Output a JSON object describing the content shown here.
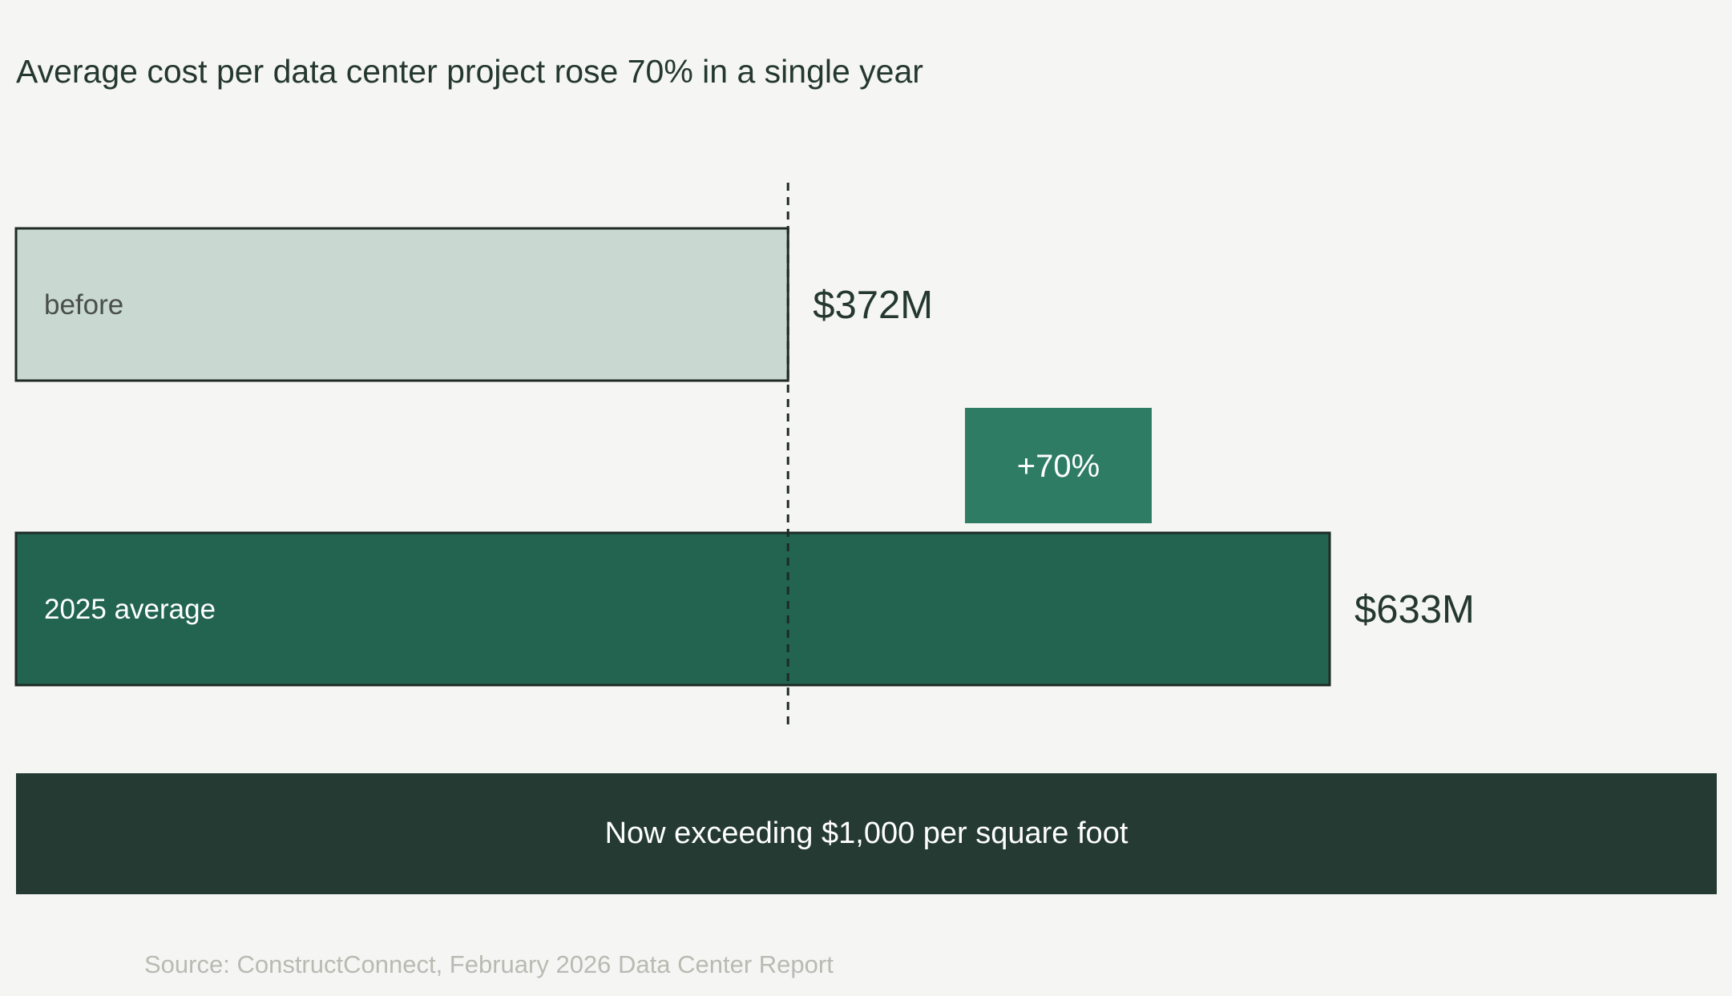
{
  "colors": {
    "background": "#f5f5f3",
    "text_dark": "#24382f",
    "bar_before": "#c9d8d1",
    "bar_before_label": "#4a4f4c",
    "bar_2025": "#226450",
    "badge": "#2f7c65",
    "bar_outline": "#1e2a25",
    "callout_bg": "#243a32",
    "source_text": "#b9bab2"
  },
  "chart_data": {
    "type": "bar",
    "orientation": "horizontal",
    "title": "Average cost per data center project rose 70% in a single year",
    "categories": [
      "before",
      "2025 average"
    ],
    "values": [
      372,
      633
    ],
    "value_labels": [
      "$372M",
      "$633M"
    ],
    "unit": "$M",
    "reference_line": {
      "value": 372,
      "style": "dashed"
    },
    "change_badge": {
      "label": "+70%"
    },
    "grid": false,
    "legend": "none"
  },
  "callout": {
    "text": "Now exceeding $1,000 per square foot"
  },
  "source": {
    "text": "Source: ConstructConnect, February 2026 Data Center Report"
  }
}
